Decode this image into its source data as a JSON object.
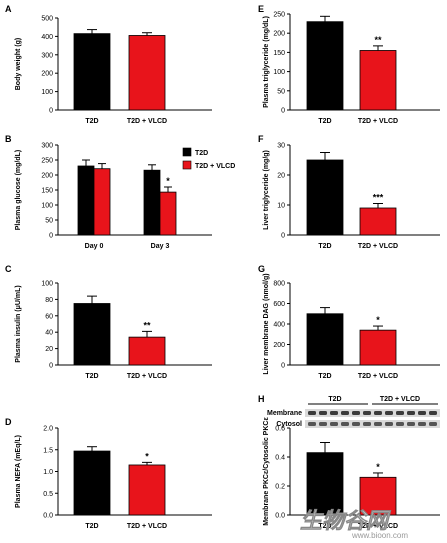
{
  "colors": {
    "t2d": "#000000",
    "vlcd": "#e8141b"
  },
  "chart_data": [
    {
      "id": "A",
      "label": "A",
      "type": "bar",
      "ylabel": "Body weight (g)",
      "categories": [
        "T2D",
        "T2D + VLCD"
      ],
      "values": [
        415,
        405
      ],
      "errors": [
        22,
        15
      ],
      "ylim": [
        0,
        500
      ],
      "yticks": [
        0,
        100,
        200,
        300,
        400,
        500
      ],
      "significance": [
        "",
        ""
      ]
    },
    {
      "id": "B",
      "label": "B",
      "type": "bar",
      "ylabel": "Plasma glucose (mg/dL)",
      "categories": [
        "Day 0",
        "Day 3"
      ],
      "series": [
        {
          "name": "T2D",
          "values": [
            230,
            216
          ],
          "errors": [
            20,
            18
          ]
        },
        {
          "name": "T2D + VLCD",
          "values": [
            221,
            143
          ],
          "errors": [
            17,
            17
          ]
        }
      ],
      "ylim": [
        0,
        300
      ],
      "yticks": [
        0,
        50,
        100,
        150,
        200,
        250,
        300
      ],
      "significance": [
        [
          "",
          ""
        ],
        [
          "",
          "*"
        ]
      ],
      "legend": "top-right"
    },
    {
      "id": "C",
      "label": "C",
      "type": "bar",
      "ylabel": "Plasma insulin (μU/mL)",
      "categories": [
        "T2D",
        "T2D + VLCD"
      ],
      "values": [
        75,
        34
      ],
      "errors": [
        9,
        7
      ],
      "ylim": [
        0,
        100
      ],
      "yticks": [
        0,
        20,
        40,
        60,
        80,
        100
      ],
      "significance": [
        "",
        "**"
      ]
    },
    {
      "id": "D",
      "label": "D",
      "type": "bar",
      "ylabel": "Plasma NEFA (mEq/L)",
      "categories": [
        "T2D",
        "T2D + VLCD"
      ],
      "values": [
        1.47,
        1.15
      ],
      "errors": [
        0.1,
        0.06
      ],
      "ylim": [
        0,
        2.0
      ],
      "yticks": [
        0.0,
        0.5,
        1.0,
        1.5,
        2.0
      ],
      "tickDecimals": 1,
      "significance": [
        "",
        "*"
      ]
    },
    {
      "id": "E",
      "label": "E",
      "type": "bar",
      "ylabel": "Plasma triglyceride (mg/dL)",
      "categories": [
        "T2D",
        "T2D + VLCD"
      ],
      "values": [
        230,
        155
      ],
      "errors": [
        14,
        12
      ],
      "ylim": [
        0,
        250
      ],
      "yticks": [
        0,
        50,
        100,
        150,
        200,
        250
      ],
      "significance": [
        "",
        "**"
      ]
    },
    {
      "id": "F",
      "label": "F",
      "type": "bar",
      "ylabel": "Liver triglyceride (mg/g)",
      "categories": [
        "T2D",
        "T2D + VLCD"
      ],
      "values": [
        25,
        9
      ],
      "errors": [
        2.5,
        1.5
      ],
      "ylim": [
        0,
        30
      ],
      "yticks": [
        0,
        10,
        20,
        30
      ],
      "significance": [
        "",
        "***"
      ]
    },
    {
      "id": "G",
      "label": "G",
      "type": "bar",
      "ylabel": "Liver membrane DAG (nmol/g)",
      "categories": [
        "T2D",
        "T2D + VLCD"
      ],
      "values": [
        500,
        340
      ],
      "errors": [
        60,
        40
      ],
      "ylim": [
        0,
        800
      ],
      "yticks": [
        0,
        200,
        400,
        600,
        800
      ],
      "significance": [
        "",
        "*"
      ]
    },
    {
      "id": "H",
      "label": "H",
      "type": "bar",
      "ylabel": "Membrane PKCε/Cytosolic PKCε",
      "categories": [
        "T2D",
        "T2D + VLCD"
      ],
      "values": [
        0.43,
        0.26
      ],
      "errors": [
        0.07,
        0.03
      ],
      "ylim": [
        0,
        0.6
      ],
      "yticks": [
        0.0,
        0.2,
        0.4,
        0.6
      ],
      "tickDecimals": 1,
      "significance": [
        "",
        "*"
      ],
      "blot": {
        "rows": [
          "Membrane",
          "Cytosol"
        ],
        "groups": [
          "T2D",
          "T2D + VLCD"
        ]
      }
    }
  ],
  "watermark": {
    "main": "生物谷网",
    "url": "www.bioon.com"
  }
}
